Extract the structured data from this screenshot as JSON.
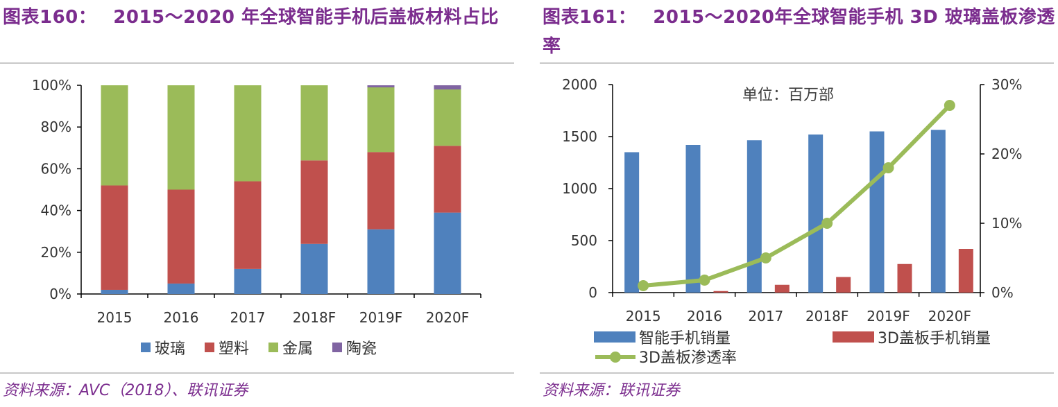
{
  "left": {
    "title_num": "图表160：",
    "title_text": "2015～2020 年全球智能手机后盖板材料占比",
    "source": "资料来源：AVC（2018）、联讯证券",
    "chart_data": {
      "type": "bar",
      "stacked": true,
      "categories": [
        "2015",
        "2016",
        "2017",
        "2018F",
        "2019F",
        "2020F"
      ],
      "series": [
        {
          "name": "玻璃",
          "color": "#4F81BD",
          "values": [
            2,
            5,
            12,
            24,
            31,
            39
          ]
        },
        {
          "name": "塑料",
          "color": "#C0504D",
          "values": [
            50,
            45,
            42,
            40,
            37,
            32
          ]
        },
        {
          "name": "金属",
          "color": "#9BBB59",
          "values": [
            48,
            50,
            46,
            36,
            31,
            27
          ]
        },
        {
          "name": "陶瓷",
          "color": "#8064A2",
          "values": [
            0,
            0,
            0,
            0,
            1,
            2
          ]
        }
      ],
      "ylim": [
        0,
        100
      ],
      "yticks": [
        "0%",
        "20%",
        "40%",
        "60%",
        "80%",
        "100%"
      ],
      "legend": "bottom"
    }
  },
  "right": {
    "title_num": "图表161：",
    "title_text": "2015～2020年全球智能手机 3D 玻璃盖板渗透率",
    "source": "资料来源：联讯证券",
    "chart_data": {
      "type": "bar+line",
      "categories": [
        "2015",
        "2016",
        "2017",
        "2018F",
        "2019F",
        "2020F"
      ],
      "annotation": "单位：百万部",
      "series": [
        {
          "name": "智能手机销量",
          "type": "bar",
          "axis": "left",
          "color": "#4F81BD",
          "values": [
            1350,
            1420,
            1465,
            1520,
            1550,
            1565
          ]
        },
        {
          "name": "3D盖板手机销量",
          "type": "bar",
          "axis": "left",
          "color": "#C0504D",
          "values": [
            0,
            15,
            75,
            150,
            275,
            420
          ]
        },
        {
          "name": "3D盖板渗透率",
          "type": "line",
          "axis": "right",
          "color": "#9BBB59",
          "values": [
            1.0,
            1.8,
            5.0,
            10.0,
            18.0,
            27.0
          ]
        }
      ],
      "ylim_left": [
        0,
        2000
      ],
      "yticks_left": [
        "0",
        "500",
        "1000",
        "1500",
        "2000"
      ],
      "ylim_right": [
        0,
        30
      ],
      "yticks_right": [
        "0%",
        "10%",
        "20%",
        "30%"
      ],
      "legend": "bottom"
    }
  }
}
